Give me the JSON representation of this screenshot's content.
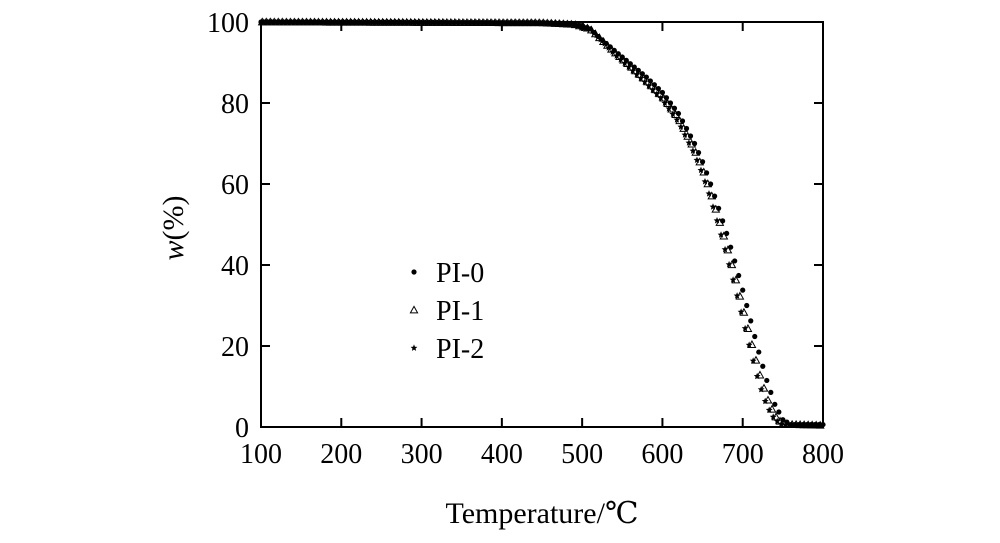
{
  "chart_data": {
    "type": "scatter",
    "xlabel": "Temperature/℃",
    "ylabel_italic": "w",
    "ylabel_rest": "(%)",
    "xlim": [
      100,
      800
    ],
    "ylim": [
      0,
      100
    ],
    "xticks": [
      100,
      200,
      300,
      400,
      500,
      600,
      700,
      800
    ],
    "yticks": [
      0,
      20,
      40,
      60,
      80,
      100
    ],
    "grid": false,
    "legend_position": "center-left",
    "marker_style": "black",
    "series": [
      {
        "name": "PI-0",
        "marker": "circle",
        "points": [
          [
            100,
            100
          ],
          [
            450,
            99.8
          ],
          [
            490,
            99.4
          ],
          [
            510,
            98.3
          ],
          [
            520,
            96.4
          ],
          [
            540,
            93
          ],
          [
            560,
            89.7
          ],
          [
            580,
            86.4
          ],
          [
            600,
            82.6
          ],
          [
            620,
            77.4
          ],
          [
            640,
            70
          ],
          [
            650,
            65.5
          ],
          [
            660,
            60
          ],
          [
            670,
            54
          ],
          [
            680,
            47.8
          ],
          [
            690,
            41
          ],
          [
            700,
            33.8
          ],
          [
            710,
            26.2
          ],
          [
            720,
            18.5
          ],
          [
            730,
            11.5
          ],
          [
            740,
            5.6
          ],
          [
            750,
            1.8
          ],
          [
            760,
            0.6
          ],
          [
            800,
            0.6
          ]
        ]
      },
      {
        "name": "PI-1",
        "marker": "triangle",
        "points": [
          [
            100,
            100
          ],
          [
            450,
            99.8
          ],
          [
            490,
            99.4
          ],
          [
            510,
            98.3
          ],
          [
            520,
            96.4
          ],
          [
            540,
            92.6
          ],
          [
            560,
            89.1
          ],
          [
            580,
            85.5
          ],
          [
            600,
            81.6
          ],
          [
            620,
            76.2
          ],
          [
            640,
            68.5
          ],
          [
            650,
            63.8
          ],
          [
            660,
            58
          ],
          [
            670,
            51.5
          ],
          [
            680,
            44.8
          ],
          [
            690,
            37.5
          ],
          [
            700,
            29.5
          ],
          [
            710,
            21.5
          ],
          [
            720,
            13.8
          ],
          [
            730,
            7.3
          ],
          [
            740,
            2.8
          ],
          [
            750,
            0.7
          ],
          [
            800,
            0.4
          ]
        ]
      },
      {
        "name": "PI-2",
        "marker": "star",
        "points": [
          [
            100,
            100
          ],
          [
            450,
            99.8
          ],
          [
            490,
            99.4
          ],
          [
            510,
            98.3
          ],
          [
            520,
            96.3
          ],
          [
            540,
            92.2
          ],
          [
            560,
            88.5
          ],
          [
            580,
            84.8
          ],
          [
            600,
            80.8
          ],
          [
            620,
            75.3
          ],
          [
            640,
            67.4
          ],
          [
            650,
            62.4
          ],
          [
            660,
            56.4
          ],
          [
            670,
            49.6
          ],
          [
            680,
            42.4
          ],
          [
            690,
            34.8
          ],
          [
            700,
            26.8
          ],
          [
            710,
            18.6
          ],
          [
            720,
            11
          ],
          [
            730,
            5.2
          ],
          [
            740,
            1.8
          ],
          [
            750,
            0.5
          ],
          [
            800,
            0.3
          ]
        ]
      }
    ]
  }
}
